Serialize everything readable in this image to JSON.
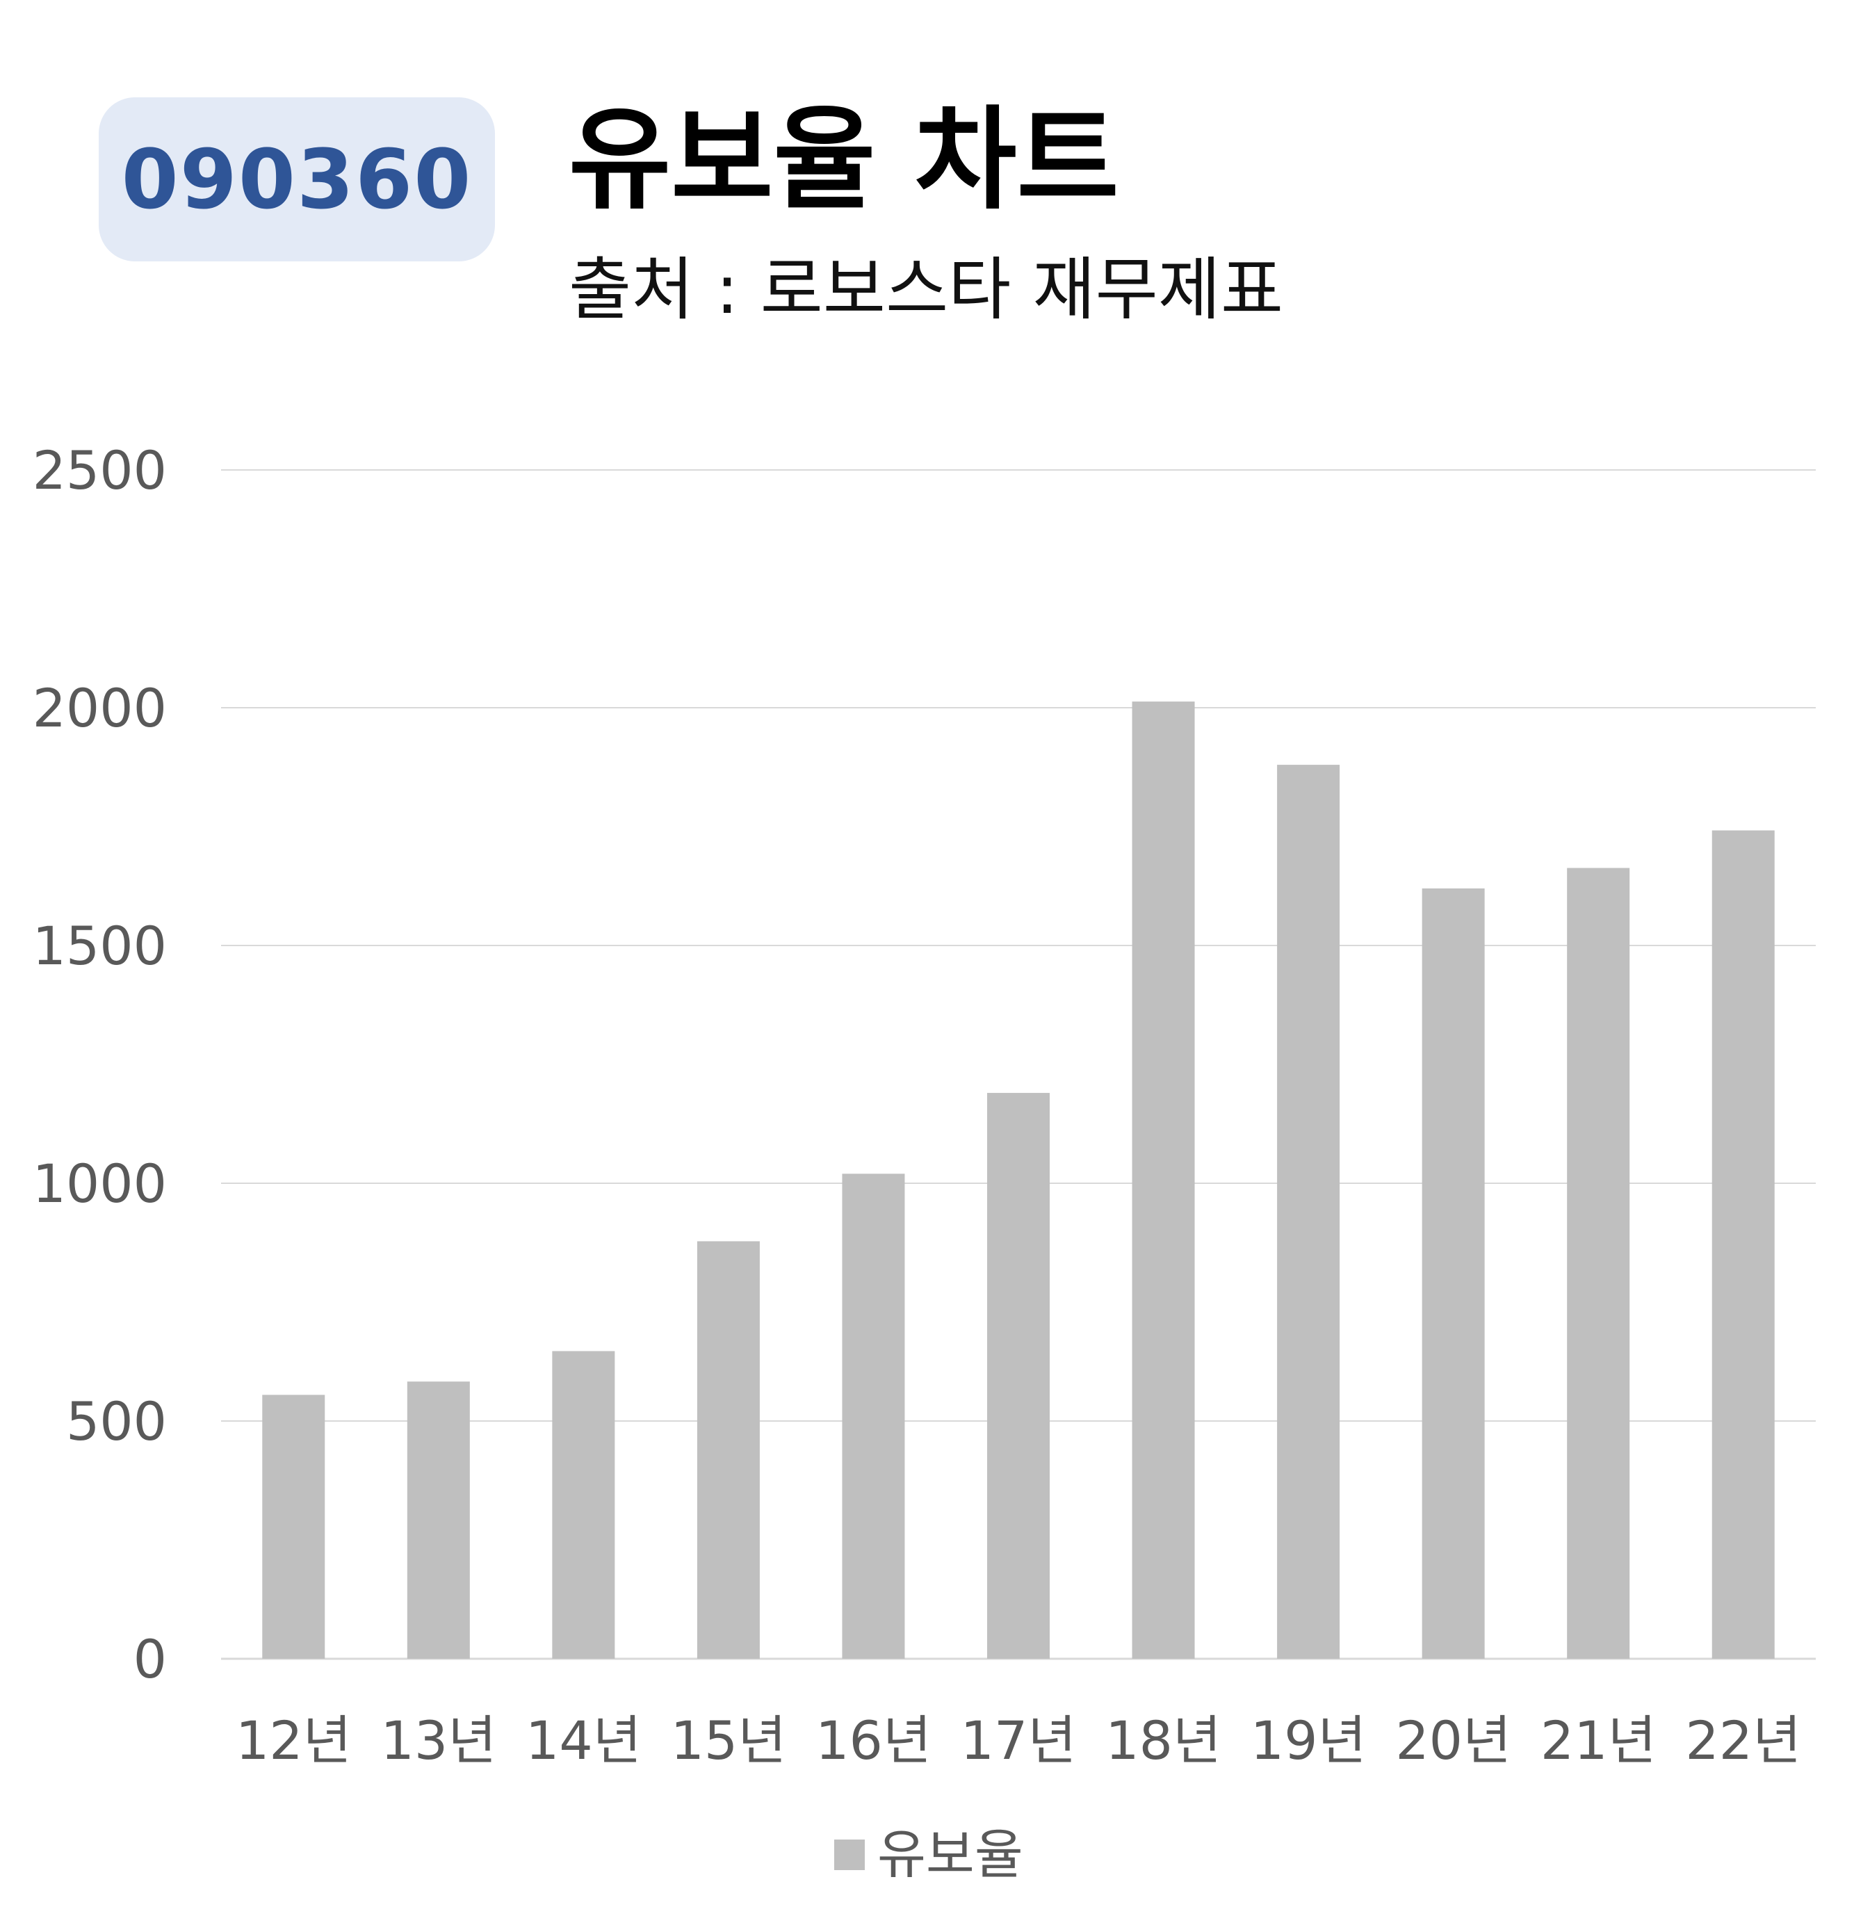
{
  "header": {
    "code": "090360",
    "title": "유보율 차트",
    "subtitle": "출처 : 로보스타 재무제표"
  },
  "colors": {
    "bar": "#bfbfbf",
    "grid": "#d9d9d9",
    "badge_bg": "#e3eaf6",
    "badge_text": "#2f5597"
  },
  "chart_data": {
    "type": "bar",
    "title": "",
    "xlabel": "",
    "ylabel": "",
    "categories": [
      "12년",
      "13년",
      "14년",
      "15년",
      "16년",
      "17년",
      "18년",
      "19년",
      "20년",
      "21년",
      "22년"
    ],
    "series": [
      {
        "name": "유보율",
        "values": [
          555,
          583,
          647,
          878,
          1020,
          1190,
          2013,
          1880,
          1620,
          1663,
          1742
        ]
      }
    ],
    "ylim": [
      0,
      2500
    ],
    "yticks": [
      0,
      500,
      1000,
      1500,
      2000,
      2500
    ],
    "grid": true,
    "legend": "bottom"
  }
}
